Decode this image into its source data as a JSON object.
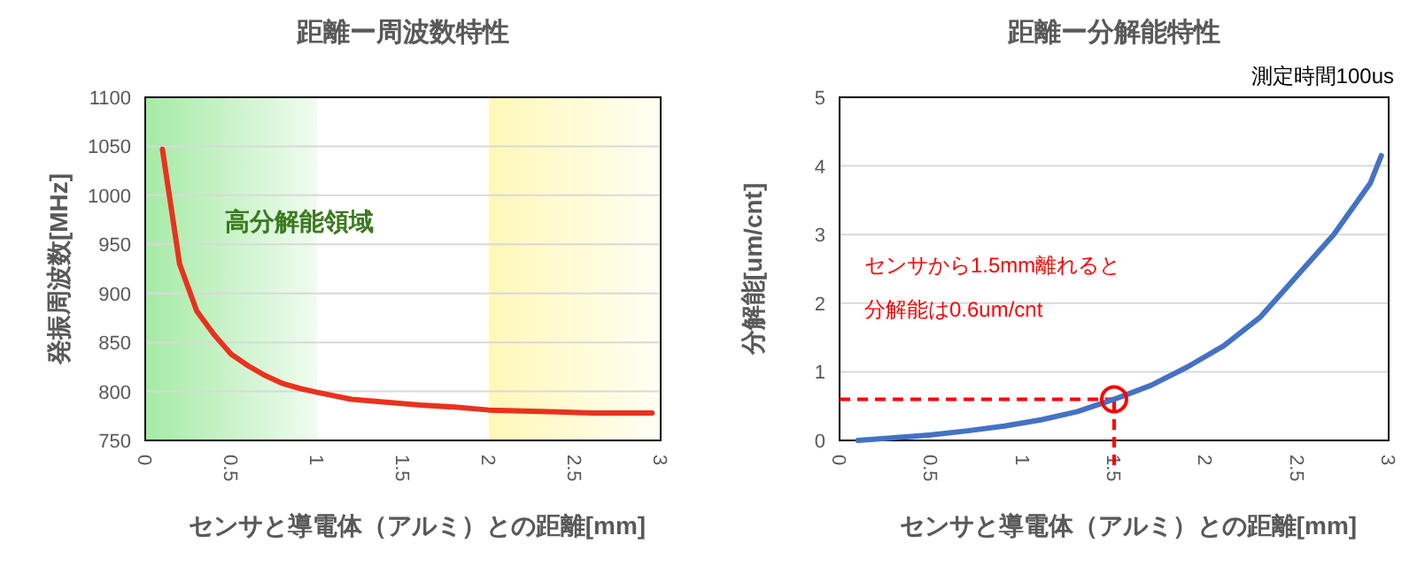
{
  "chart_data": [
    {
      "type": "line",
      "title": "距離ー周波数特性",
      "xlabel": "センサと導電体（アルミ）との距離[mm]",
      "ylabel": "発振周波数[MHz]",
      "series": [
        {
          "color": "#e8321e",
          "x": [
            0.1,
            0.2,
            0.3,
            0.4,
            0.5,
            0.6,
            0.7,
            0.8,
            0.9,
            1.0,
            1.2,
            1.4,
            1.6,
            1.8,
            2.0,
            2.2,
            2.4,
            2.6,
            2.8,
            2.95
          ],
          "values": [
            1047,
            930,
            882,
            858,
            838,
            826,
            816,
            808,
            803,
            799,
            792,
            789,
            786,
            784,
            781,
            780,
            779,
            778,
            778,
            778
          ]
        }
      ],
      "xlim": [
        0,
        3
      ],
      "xticks": [
        0,
        0.5,
        1,
        1.5,
        2,
        2.5,
        3
      ],
      "ylim": [
        750,
        1100
      ],
      "yticks": [
        750,
        800,
        850,
        900,
        950,
        1000,
        1050,
        1100
      ],
      "grid": "y",
      "marker": "none",
      "line_style": "solid",
      "bands": [
        {
          "axis": "x",
          "from": 0,
          "to": 1,
          "label": "高分解能領域",
          "color": "#9be89b"
        },
        {
          "axis": "x",
          "from": 2,
          "to": 3,
          "color": "#fff7b0"
        }
      ]
    },
    {
      "type": "line",
      "title": "距離ー分解能特性",
      "xlabel": "センサと導電体（アルミ）との距離[mm]",
      "ylabel": "分解能[um/cnt]",
      "series": [
        {
          "color": "#4472c4",
          "x": [
            0.1,
            0.3,
            0.5,
            0.7,
            0.9,
            1.1,
            1.3,
            1.5,
            1.7,
            1.9,
            2.1,
            2.3,
            2.5,
            2.7,
            2.9,
            2.96
          ],
          "values": [
            0,
            0.04,
            0.08,
            0.14,
            0.21,
            0.3,
            0.42,
            0.6,
            0.8,
            1.07,
            1.38,
            1.8,
            2.4,
            3.0,
            3.75,
            4.15
          ]
        },
        {
          "type": "scatter",
          "marker": "circle",
          "color": "#ff0000",
          "x": [
            1.5
          ],
          "values": [
            0.6
          ]
        }
      ],
      "xlim": [
        0,
        3
      ],
      "xticks": [
        0,
        0.5,
        1,
        1.5,
        2,
        2.5,
        3
      ],
      "ylim": [
        0,
        5
      ],
      "yticks": [
        0,
        1,
        2,
        3,
        4,
        5
      ],
      "grid": "y",
      "marker": "none",
      "line_style": "solid",
      "ref_lines": [
        {
          "axis": "y",
          "value": 0.6,
          "color": "#ff0000",
          "line_style": "dashed"
        },
        {
          "axis": "x",
          "value": 1.5,
          "color": "#ff0000",
          "line_style": "dashed"
        }
      ],
      "annotations": [
        "測定時間100us",
        "センサから1.5mm離れると",
        "分解能は0.6um/cnt"
      ]
    }
  ]
}
